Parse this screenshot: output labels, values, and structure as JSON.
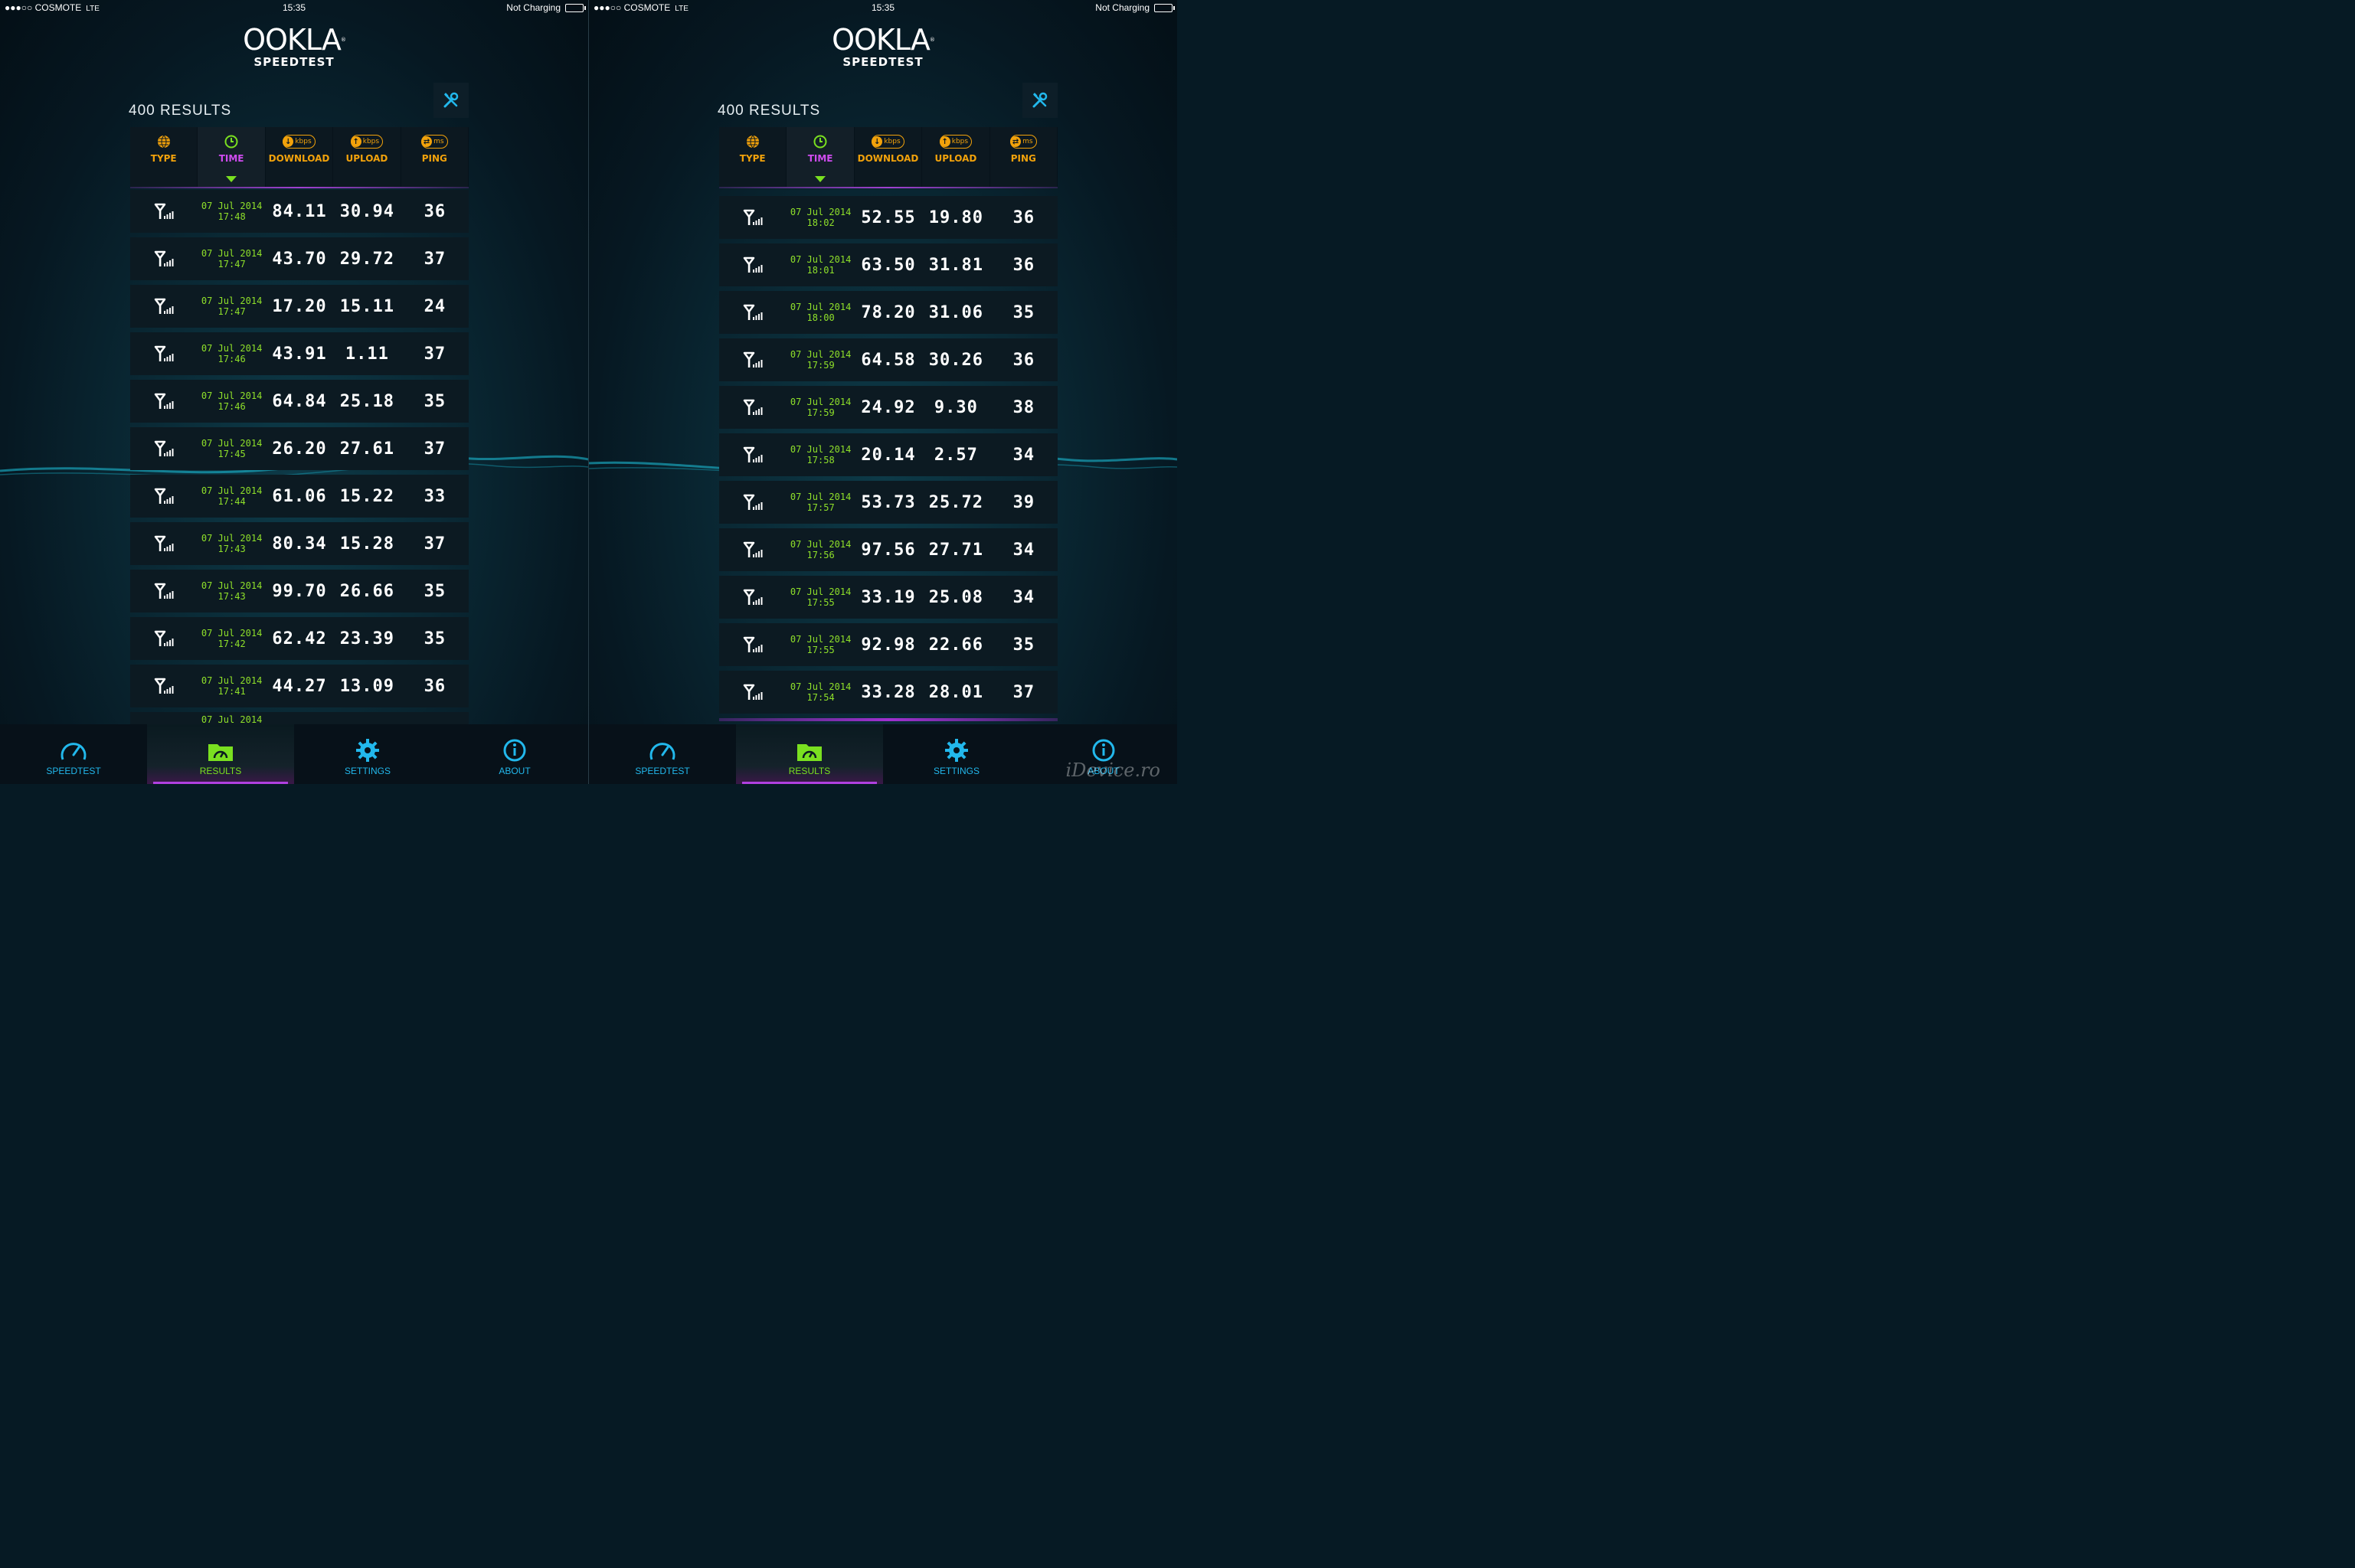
{
  "status": {
    "carrier_dots": "●●●○○",
    "carrier": "COSMOTE",
    "network": "LTE",
    "time": "15:35",
    "charging": "Not Charging"
  },
  "logo": {
    "brand": "OOKLA",
    "product": "SPEEDTEST"
  },
  "results": {
    "count_label": "400 RESULTS"
  },
  "columns": {
    "type": "TYPE",
    "time": "TIME",
    "download": "DOWNLOAD",
    "upload": "UPLOAD",
    "ping": "PING",
    "kbps": "kbps",
    "ms": "ms"
  },
  "tabs": {
    "speedtest": "SPEEDTEST",
    "results": "RESULTS",
    "settings": "SETTINGS",
    "about": "ABOUT"
  },
  "left_rows": [
    {
      "date": "07 Jul 2014",
      "time": "17:48",
      "download": "84.11",
      "upload": "30.94",
      "ping": "36"
    },
    {
      "date": "07 Jul 2014",
      "time": "17:47",
      "download": "43.70",
      "upload": "29.72",
      "ping": "37"
    },
    {
      "date": "07 Jul 2014",
      "time": "17:47",
      "download": "17.20",
      "upload": "15.11",
      "ping": "24"
    },
    {
      "date": "07 Jul 2014",
      "time": "17:46",
      "download": "43.91",
      "upload": "1.11",
      "ping": "37"
    },
    {
      "date": "07 Jul 2014",
      "time": "17:46",
      "download": "64.84",
      "upload": "25.18",
      "ping": "35"
    },
    {
      "date": "07 Jul 2014",
      "time": "17:45",
      "download": "26.20",
      "upload": "27.61",
      "ping": "37"
    },
    {
      "date": "07 Jul 2014",
      "time": "17:44",
      "download": "61.06",
      "upload": "15.22",
      "ping": "33"
    },
    {
      "date": "07 Jul 2014",
      "time": "17:43",
      "download": "80.34",
      "upload": "15.28",
      "ping": "37"
    },
    {
      "date": "07 Jul 2014",
      "time": "17:43",
      "download": "99.70",
      "upload": "26.66",
      "ping": "35"
    },
    {
      "date": "07 Jul 2014",
      "time": "17:42",
      "download": "62.42",
      "upload": "23.39",
      "ping": "35"
    },
    {
      "date": "07 Jul 2014",
      "time": "17:41",
      "download": "44.27",
      "upload": "13.09",
      "ping": "36"
    }
  ],
  "left_partial": {
    "date": "07 Jul 2014"
  },
  "right_rows": [
    {
      "date": "07 Jul 2014",
      "time": "18:02",
      "download": "52.55",
      "upload": "19.80",
      "ping": "36"
    },
    {
      "date": "07 Jul 2014",
      "time": "18:01",
      "download": "63.50",
      "upload": "31.81",
      "ping": "36"
    },
    {
      "date": "07 Jul 2014",
      "time": "18:00",
      "download": "78.20",
      "upload": "31.06",
      "ping": "35"
    },
    {
      "date": "07 Jul 2014",
      "time": "17:59",
      "download": "64.58",
      "upload": "30.26",
      "ping": "36"
    },
    {
      "date": "07 Jul 2014",
      "time": "17:59",
      "download": "24.92",
      "upload": "9.30",
      "ping": "38"
    },
    {
      "date": "07 Jul 2014",
      "time": "17:58",
      "download": "20.14",
      "upload": "2.57",
      "ping": "34"
    },
    {
      "date": "07 Jul 2014",
      "time": "17:57",
      "download": "53.73",
      "upload": "25.72",
      "ping": "39"
    },
    {
      "date": "07 Jul 2014",
      "time": "17:56",
      "download": "97.56",
      "upload": "27.71",
      "ping": "34"
    },
    {
      "date": "07 Jul 2014",
      "time": "17:55",
      "download": "33.19",
      "upload": "25.08",
      "ping": "34"
    },
    {
      "date": "07 Jul 2014",
      "time": "17:55",
      "download": "92.98",
      "upload": "22.66",
      "ping": "35"
    },
    {
      "date": "07 Jul 2014",
      "time": "17:54",
      "download": "33.28",
      "upload": "28.01",
      "ping": "37"
    }
  ],
  "watermark": "iDevice.ro",
  "colors": {
    "accent_orange": "#f2a20b",
    "accent_green": "#7ae020",
    "accent_purple": "#b040e0",
    "tab_blue": "#22b8ec"
  }
}
